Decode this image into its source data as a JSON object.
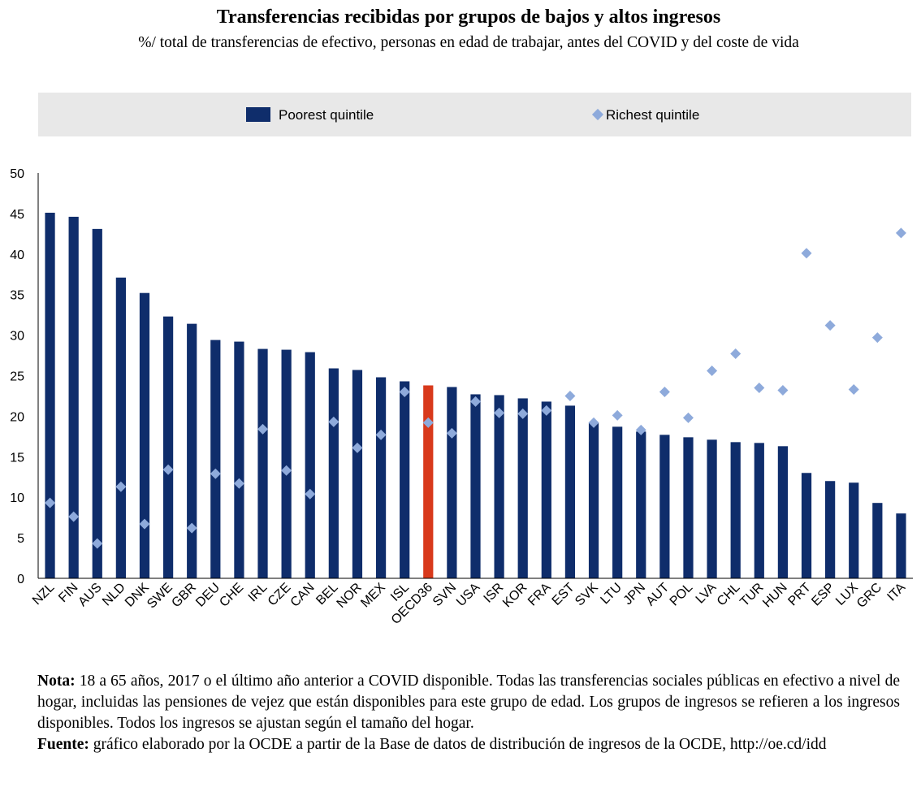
{
  "chart_data": {
    "type": "bar",
    "title": "Transferencias recibidas por grupos de bajos y altos ingresos",
    "subtitle": "%/ total de transferencias de efectivo, personas en edad de trabajar, antes del COVID y del coste de vida",
    "categories": [
      "NZL",
      "FIN",
      "AUS",
      "NLD",
      "DNK",
      "SWE",
      "GBR",
      "DEU",
      "CHE",
      "IRL",
      "CZE",
      "CAN",
      "BEL",
      "NOR",
      "MEX",
      "ISL",
      "OECD36",
      "SVN",
      "USA",
      "ISR",
      "KOR",
      "FRA",
      "EST",
      "SVK",
      "LTU",
      "JPN",
      "AUT",
      "POL",
      "LVA",
      "CHL",
      "TUR",
      "HUN",
      "PRT",
      "ESP",
      "LUX",
      "GRC",
      "ITA"
    ],
    "series": [
      {
        "name": "Poorest quintile",
        "kind": "bar",
        "values": [
          45.1,
          44.6,
          43.1,
          37.1,
          35.2,
          32.3,
          31.4,
          29.4,
          29.2,
          28.3,
          28.2,
          27.9,
          25.9,
          25.7,
          24.8,
          24.3,
          23.8,
          23.6,
          22.7,
          22.6,
          22.2,
          21.8,
          21.3,
          19.2,
          18.7,
          18.1,
          17.7,
          17.4,
          17.1,
          16.8,
          16.7,
          16.3,
          13.0,
          12.0,
          11.8,
          9.3,
          8.0
        ]
      },
      {
        "name": "Richest quintile",
        "kind": "marker",
        "values": [
          9.3,
          7.6,
          4.3,
          11.3,
          6.7,
          13.4,
          6.2,
          12.9,
          11.7,
          18.4,
          13.3,
          10.4,
          19.3,
          16.1,
          17.7,
          23.0,
          19.2,
          17.9,
          21.8,
          20.4,
          20.3,
          20.7,
          22.5,
          19.2,
          20.1,
          18.3,
          23.0,
          19.8,
          25.6,
          27.7,
          23.5,
          23.2,
          40.1,
          31.2,
          23.3,
          29.7,
          42.6
        ]
      }
    ],
    "highlight_category": "OECD36",
    "ylim": [
      0,
      50
    ],
    "yticks": [
      0,
      5,
      10,
      15,
      20,
      25,
      30,
      35,
      40,
      45,
      50
    ],
    "xlabel": "",
    "ylabel": "",
    "legend_position": "top"
  },
  "colors": {
    "bar": "#0f2d6b",
    "highlight_bar": "#d8391b",
    "marker": "#8eaadb",
    "legend_bg": "#e8e8e8",
    "grid": "#ffffff"
  },
  "legend": {
    "poorest_label": "Poorest quintile",
    "richest_label": "Richest quintile"
  },
  "note": {
    "nota_label": "Nota:",
    "nota_text": "18 a 65 años, 2017 o el último año anterior a COVID disponible. Todas las transferencias sociales públicas en efectivo a nivel de hogar, incluidas las pensiones de vejez que están disponibles para este grupo de edad. Los grupos de ingresos se refieren a los ingresos disponibles. Todos los ingresos se ajustan según el tamaño del hogar.",
    "fuente_label": "Fuente:",
    "fuente_text": "gráfico elaborado por la OCDE a partir de la Base de datos de distribución de ingresos de la OCDE, http://oe.cd/idd"
  }
}
